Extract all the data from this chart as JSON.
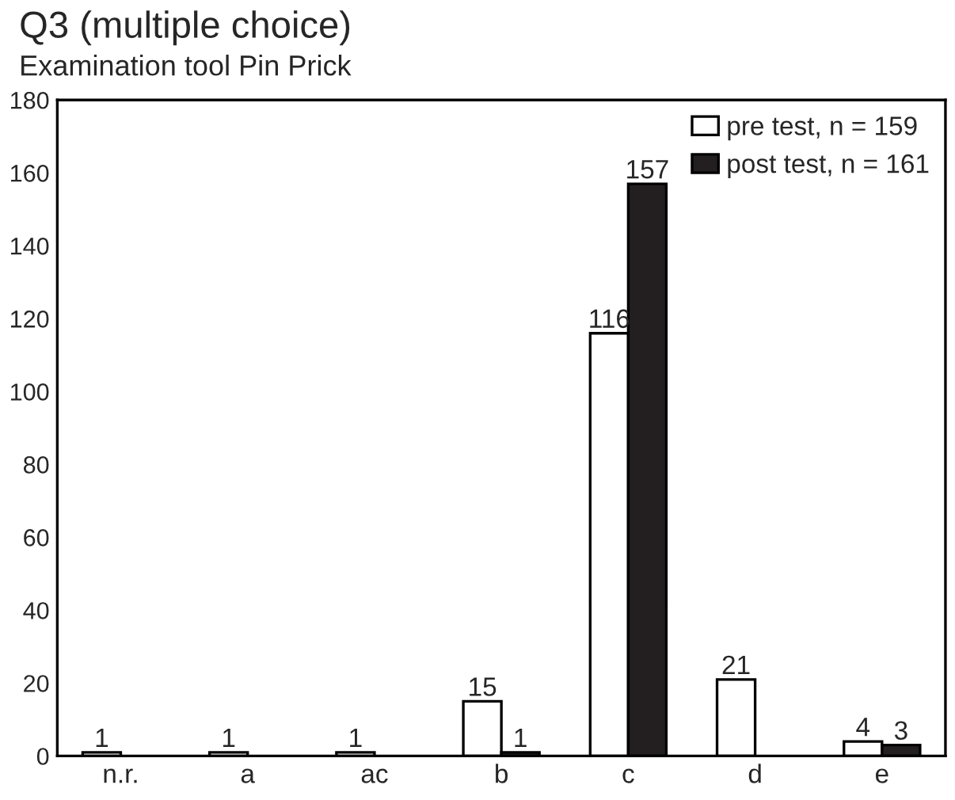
{
  "chart_data": {
    "type": "bar",
    "title": "Q3 (multiple choice)",
    "subtitle": "Examination tool Pin Prick",
    "categories": [
      "n.r.",
      "a",
      "ac",
      "b",
      "c",
      "d",
      "e"
    ],
    "series": [
      {
        "name": "pre test, n = 159",
        "color": "#ffffff",
        "values": [
          1,
          1,
          1,
          15,
          116,
          21,
          4
        ]
      },
      {
        "name": "post test, n = 161",
        "color": "#231f20",
        "values": [
          null,
          null,
          null,
          1,
          157,
          null,
          3
        ]
      }
    ],
    "ylim": [
      0,
      180
    ],
    "yticks": [
      0,
      20,
      40,
      60,
      80,
      100,
      120,
      140,
      160,
      180
    ],
    "data_labels": true,
    "legend": "top right",
    "grid": false
  }
}
